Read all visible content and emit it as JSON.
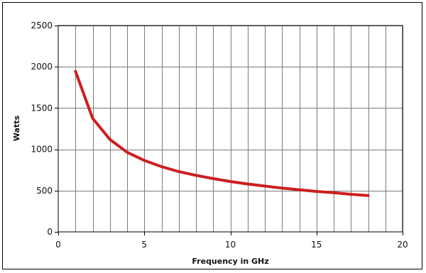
{
  "chart_data": {
    "type": "line",
    "title": "",
    "xlabel": "Frequency in GHz",
    "ylabel": "Watts",
    "xlim": [
      0,
      20
    ],
    "ylim": [
      0,
      2500
    ],
    "x_ticks": [
      0,
      5,
      10,
      15,
      20
    ],
    "y_ticks": [
      0,
      500,
      1000,
      1500,
      2000,
      2500
    ],
    "x_gridlines": [
      1,
      2,
      3,
      4,
      5,
      6,
      7,
      8,
      9,
      10,
      11,
      12,
      13,
      14,
      15,
      16,
      17,
      18,
      19,
      20
    ],
    "y_gridlines": [
      500,
      1000,
      1500,
      2000,
      2500
    ],
    "grid": true,
    "series": [
      {
        "color": "#cc1f1f",
        "x": [
          1,
          2,
          3,
          4,
          5,
          6,
          7,
          8,
          9,
          10,
          11,
          12,
          13,
          14,
          15,
          16,
          17,
          18
        ],
        "y": [
          1945,
          1375,
          1120,
          965,
          865,
          790,
          730,
          685,
          645,
          610,
          580,
          555,
          530,
          510,
          490,
          475,
          455,
          440
        ]
      }
    ]
  }
}
